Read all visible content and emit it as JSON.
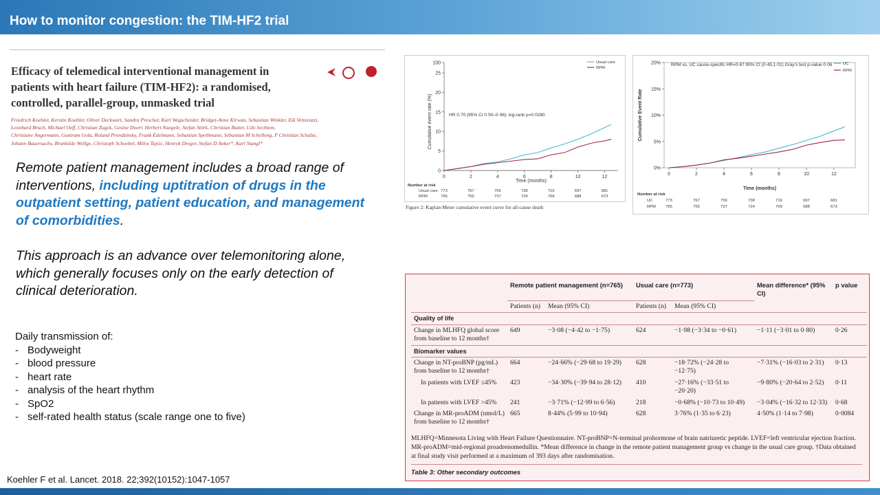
{
  "header": {
    "title": "How to monitor congestion: the TIM-HF2 trial"
  },
  "paper": {
    "title_lines": [
      "Efficacy of telemedical interventional management in",
      "patients with heart failure (TIM-HF2): a randomised,",
      "controlled, parallel-group, unmasked trial"
    ],
    "author_lines": [
      "Friedrich Koehler, Kerstin Koehler, Oliver Deckwart, Sandra Prescher, Karl Wegscheider, Bridget-Anne Kirwan, Sebastian Winkler, Eik Vettorazzi,",
      "Leonhard Bruch, Michael Oeff, Christian Zugck, Gesine Doerr, Herbert Naegele, Stefan Störk, Christian Butter, Udo Sechtem,",
      "Christiane Angermann, Guntram Gola, Roland Prondzinsky, Frank Edelmann, Sebastian Spethmann, Sebastian M Schellong, P Christian Schulze,",
      "Johann Bauersachs, Brunhilde Wellge, Christoph Schoebel, Milos Tajsic, Henryk Dreger, Stefan D Anker*, Karl Stangl*"
    ]
  },
  "text": {
    "paragraph1": [
      "Remote patient management includes a broad range of interventions, ",
      "including uptitration of drugs in the outpatient setting, patient education, and management of comorbidities",
      "."
    ],
    "paragraph2": "This approach is an advance over telemonitoring alone, which generally focuses only on the early detection of clinical deterioration.",
    "list_title": "Daily transmission of:",
    "items": [
      "Bodyweight",
      "blood pressure",
      "heart rate",
      "analysis of the heart rhythm",
      "SpO2",
      "self-rated health status (scale range one to five)"
    ],
    "citation": "Koehler F et al. Lancet. 2018. 22;392(10152):1047-1057"
  },
  "figure1": {
    "y_label": "Cumulative event rate (%)",
    "x_label": "Time (months)",
    "annotation": "HR 0·70 (95% CI 0·50–0·96); log-rank p=0·0280",
    "xlim": [
      0,
      13
    ],
    "ylim": [
      0,
      25
    ],
    "xticks": [
      0,
      2,
      4,
      6,
      8,
      10,
      12
    ],
    "yticks": [
      0,
      5,
      10,
      15,
      20,
      25
    ],
    "ytick_break": 100,
    "series": [
      {
        "name": "Usual care",
        "color": "#4fb8d8",
        "x": [
          0,
          1,
          2,
          3,
          4,
          5,
          6,
          7,
          8,
          9,
          10,
          11,
          12,
          12.5
        ],
        "values": [
          0,
          0.5,
          1,
          1.8,
          2.2,
          3,
          4,
          4.6,
          5.8,
          6.8,
          8,
          9.4,
          11,
          11.8
        ]
      },
      {
        "name": "RPM",
        "color": "#a0304a",
        "x": [
          0,
          1,
          2,
          3,
          4,
          5,
          6,
          7,
          8,
          9,
          10,
          11,
          12,
          12.5
        ],
        "values": [
          0,
          0.5,
          1,
          1.6,
          2,
          2.4,
          2.8,
          3,
          4,
          4.6,
          6,
          7,
          7.6,
          8
        ]
      }
    ],
    "risk": {
      "title": "Number at risk",
      "rows": [
        {
          "label": "Usual care",
          "values": [
            773,
            767,
            756,
            738,
            716,
            697,
            681
          ]
        },
        {
          "label": "RPM",
          "values": [
            765,
            755,
            737,
            724,
            709,
            688,
            673
          ]
        }
      ]
    },
    "caption": "Figure 2: Kaplan-Meier cumulative event curve for all-cause death"
  },
  "figure2": {
    "y_label": "Cumulative Event Rate",
    "x_label": "Time (months)",
    "annotation": "RPM vs. UC cause-specific HR=0·67 95% CI (0·45,1·01) Gray's test p-value 0·06",
    "xlim": [
      -0.35,
      13.55
    ],
    "ylim": [
      0,
      20
    ],
    "xticks": [
      0,
      2,
      4,
      6,
      8,
      10,
      12
    ],
    "yticks": [
      {
        "value": 0,
        "label": "0%"
      },
      {
        "value": 5,
        "label": "5%"
      },
      {
        "value": 10,
        "label": "10%"
      },
      {
        "value": 15,
        "label": "15%"
      },
      {
        "value": 20,
        "label": "20%"
      }
    ],
    "series": [
      {
        "name": "UC",
        "color": "#45b5d8",
        "x": [
          0,
          1,
          2,
          3,
          4,
          5,
          6,
          7,
          8,
          9,
          10,
          11,
          12,
          12.8
        ],
        "values": [
          0,
          0.2,
          0.5,
          0.9,
          1.4,
          1.9,
          2.5,
          3,
          3.7,
          4.4,
          5.2,
          6,
          7,
          7.8
        ]
      },
      {
        "name": "RPM",
        "color": "#a02040",
        "x": [
          0,
          1,
          2,
          3,
          4,
          5,
          6,
          7,
          8,
          9,
          10,
          11,
          12,
          12.8
        ],
        "values": [
          0,
          0.2,
          0.5,
          0.9,
          1.5,
          1.8,
          2.2,
          2.6,
          3,
          3.5,
          4.3,
          4.8,
          5.2,
          5.3
        ]
      }
    ],
    "risk": {
      "title": "Number at risk",
      "rows": [
        {
          "label": "UC",
          "values": [
            773,
            767,
            756,
            738,
            716,
            697,
            681
          ]
        },
        {
          "label": "RPM",
          "values": [
            765,
            755,
            737,
            724,
            709,
            688,
            673
          ]
        }
      ]
    }
  },
  "table": {
    "groups": [
      "Remote patient management (n=765)",
      "Usual care (n=773)",
      "Mean difference* (95% CI)",
      "p value"
    ],
    "subheaders": [
      "Patients (n)",
      "Mean (95% CI)",
      "Patients (n)",
      "Mean (95% CI)"
    ],
    "sections": [
      {
        "title": "Quality of life",
        "rows": [
          {
            "label": "Change in MLHFQ global score from baseline to 12 months†",
            "indent": false,
            "cells": [
              649,
              "−3·08 (−4·42 to −1·75)",
              624,
              "−1·98 (−3·34 to −0·61)",
              "−1·11 (−3·01 to 0·80)",
              "0·26"
            ]
          }
        ]
      },
      {
        "title": "Biomarker values",
        "rows": [
          {
            "label": "Change in NT-proBNP (pg/mL) from baseline to 12 months†",
            "indent": false,
            "cells": [
              664,
              "−24·66% (−29·68 to 19·29)",
              628,
              "−18·72% (−24·28 to −12·75)",
              "−7·31% (−16·03 to 2·31)",
              "0·13"
            ]
          },
          {
            "label": "In patients with LVEF ≤45%",
            "indent": true,
            "cells": [
              423,
              "−34·30% (−39·94 to 28·12)",
              410,
              "−27·16% (−33·51 to −20·20)",
              "−9·80% (−20·64 to 2·52)",
              "0·11"
            ]
          },
          {
            "label": "In patients with LVEF >45%",
            "indent": true,
            "cells": [
              241,
              "−3·71% (−12·99 to 6·56)",
              218,
              "−0·68% (−10·73 to 10·49)",
              "−3·04% (−16·32 to 12·33)",
              "0·68"
            ]
          },
          {
            "label": "Change in MR-proADM (nmol/L) from baseline to 12 months†",
            "indent": false,
            "cells": [
              665,
              "8·44% (5·99 to 10·94)",
              628,
              "3·76% (1·35 to 6·23)",
              "4·50% (1·14 to 7·98)",
              "0·0084"
            ]
          }
        ]
      }
    ],
    "footnote": "MLHFQ=Minnesota Living with Heart Failure Questionnaire. NT-proBNP=N-terminal prohormone of brain natriuretic peptide. LVEF=left ventricular ejection fraction. MR-proADM=mid-regional proadrenomedullin. *Mean difference in change in the remote patient management group vs change in the usual care group. †Data obtained at final study visit performed at a maximum of 393 days after randomisation.",
    "caption": "Table 3: Other secondary outcomes"
  }
}
